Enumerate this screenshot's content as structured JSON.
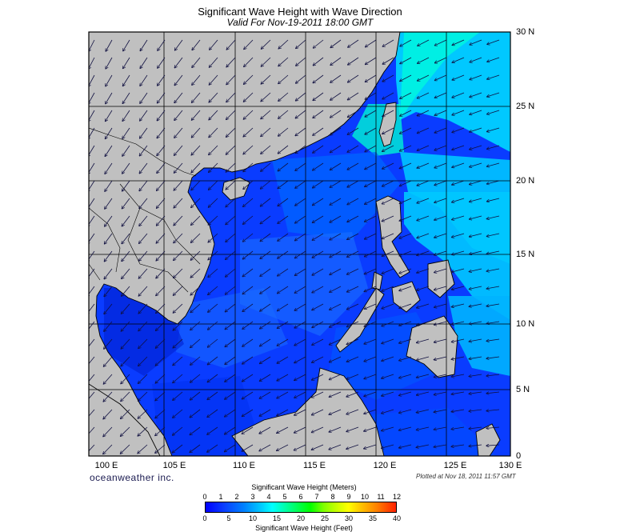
{
  "title": "Significant Wave Height with Wave Direction",
  "subtitle": "Valid For Nov-19-2011 18:00 GMT",
  "map": {
    "lon_range": [
      100,
      130
    ],
    "lat_range": [
      0,
      30
    ],
    "lat_labels": [
      "30 N",
      "25 N",
      "20 N",
      "15 N",
      "10 N",
      "5 N",
      "0"
    ],
    "lon_labels": [
      "100 E",
      "105 E",
      "110 E",
      "115 E",
      "120 E",
      "125 E",
      "130 E"
    ],
    "grid_interval_deg": 5,
    "land_color": "#c0c0c0",
    "sea_base_color": "#0a3cff"
  },
  "brand": "oceanweather inc.",
  "plotted": "Plotted at Nov 18, 2011 11:57 GMT",
  "colorbar": {
    "meters_label": "Significant Wave Height (Meters)",
    "feet_label": "Significant Wave Height (Feet)",
    "meters_ticks": [
      "0",
      "1",
      "2",
      "3",
      "4",
      "5",
      "6",
      "7",
      "8",
      "9",
      "10",
      "11",
      "12"
    ],
    "feet_ticks": [
      "0",
      "5",
      "10",
      "15",
      "20",
      "25",
      "30",
      "35",
      "40"
    ]
  }
}
